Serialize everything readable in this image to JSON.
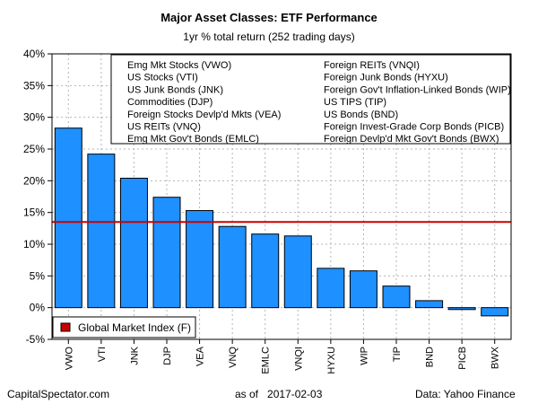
{
  "chart_data": {
    "type": "bar",
    "title": "Major Asset Classes: ETF Performance",
    "subtitle": "1yr % total return (252 trading days)",
    "categories": [
      "VWO",
      "VTI",
      "JNK",
      "DJP",
      "VEA",
      "VNQ",
      "EMLC",
      "VNQI",
      "HYXU",
      "WIP",
      "TIP",
      "BND",
      "PICB",
      "BWX"
    ],
    "values": [
      28.3,
      24.2,
      20.4,
      17.4,
      15.3,
      12.8,
      11.6,
      11.3,
      6.2,
      5.8,
      3.4,
      1.1,
      -0.3,
      -1.3
    ],
    "bar_color": "#1e90ff",
    "reference_line": {
      "value": 13.5,
      "color": "#cc0000",
      "label": "Global Market Index (F)"
    },
    "ylim": [
      -5,
      40
    ],
    "yticks": [
      -5,
      0,
      5,
      10,
      15,
      20,
      25,
      30,
      35,
      40
    ],
    "ytick_labels": [
      "-5%",
      "0%",
      "5%",
      "10%",
      "15%",
      "20%",
      "25%",
      "30%",
      "35%",
      "40%"
    ],
    "grid": true,
    "legend_placement": "top-right",
    "legend_left": [
      "Emg Mkt Stocks (VWO)",
      "US Stocks (VTI)",
      "US Junk Bonds (JNK)",
      "Commodities (DJP)",
      "Foreign Stocks Devlp'd Mkts (VEA)",
      "US REITs (VNQ)",
      "Emg Mkt Gov't Bonds (EMLC)"
    ],
    "legend_right": [
      "Foreign REITs (VNQI)",
      "Foreign Junk Bonds (HYXU)",
      "Foreign Gov't Inflation-Linked Bonds (WIP)",
      "US TIPS (TIP)",
      "US Bonds (BND)",
      "Foreign Invest-Grade Corp Bonds (PICB)",
      "Foreign Devlp'd Mkt Gov't Bonds (BWX)"
    ]
  },
  "footer": {
    "left": "CapitalSpectator.com",
    "middle": "as of   2017-02-03",
    "right": "Data: Yahoo Finance"
  }
}
